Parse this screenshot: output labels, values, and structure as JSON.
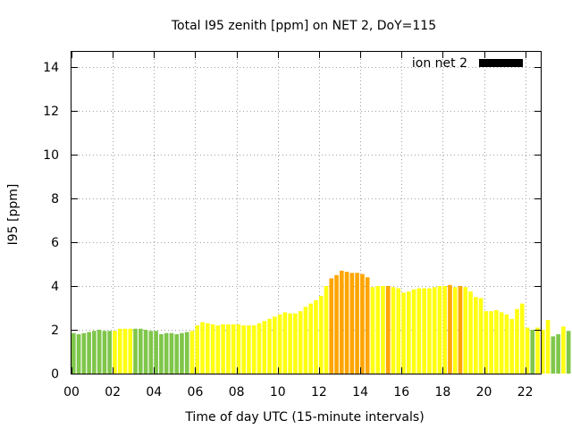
{
  "chart_data": {
    "type": "bar",
    "title": "Total I95 zenith [ppm] on NET 2, DoY=115",
    "xlabel": "Time of day UTC (15-minute intervals)",
    "ylabel": "I95 [ppm]",
    "xlim": [
      0,
      22.75
    ],
    "ylim": [
      0,
      14.7
    ],
    "xticks": [
      "00",
      "02",
      "04",
      "06",
      "08",
      "10",
      "12",
      "14",
      "16",
      "18",
      "20",
      "22"
    ],
    "yticks": [
      "0",
      "2",
      "4",
      "6",
      "8",
      "10",
      "12",
      "14"
    ],
    "grid": true,
    "legend": {
      "label": "ion net 2",
      "color": "#000000",
      "position": "top-right"
    },
    "interval_hours": 0.25,
    "level_colors": {
      "green": "#7fc64a",
      "yellow": "#ffff11",
      "orange": "#ffa500"
    },
    "values": [
      1.85,
      1.8,
      1.85,
      1.9,
      1.95,
      2.0,
      1.95,
      1.95,
      1.95,
      2.05,
      2.05,
      2.05,
      2.05,
      2.05,
      2.0,
      1.95,
      1.95,
      1.8,
      1.85,
      1.85,
      1.8,
      1.85,
      1.9,
      1.95,
      2.2,
      2.35,
      2.3,
      2.25,
      2.2,
      2.25,
      2.25,
      2.25,
      2.25,
      2.2,
      2.2,
      2.2,
      2.3,
      2.4,
      2.5,
      2.6,
      2.7,
      2.8,
      2.75,
      2.75,
      2.85,
      3.05,
      3.2,
      3.35,
      3.55,
      4.0,
      4.35,
      4.5,
      4.7,
      4.65,
      4.6,
      4.6,
      4.55,
      4.4,
      3.95,
      4.0,
      4.0,
      4.0,
      3.95,
      3.9,
      3.7,
      3.75,
      3.85,
      3.9,
      3.9,
      3.9,
      3.95,
      4.0,
      4.0,
      4.05,
      3.95,
      4.0,
      3.95,
      3.75,
      3.5,
      3.45,
      2.85,
      2.85,
      2.9,
      2.8,
      2.7,
      2.5,
      2.95,
      3.2,
      2.1,
      2.0,
      2.1,
      2.0,
      2.45,
      1.7,
      1.8,
      2.15,
      1.95
    ],
    "levels": [
      "green",
      "green",
      "green",
      "green",
      "green",
      "green",
      "green",
      "green",
      "yellow",
      "yellow",
      "yellow",
      "yellow",
      "green",
      "green",
      "green",
      "green",
      "green",
      "green",
      "green",
      "green",
      "green",
      "green",
      "green",
      "yellow",
      "yellow",
      "yellow",
      "yellow",
      "yellow",
      "yellow",
      "yellow",
      "yellow",
      "yellow",
      "yellow",
      "yellow",
      "yellow",
      "yellow",
      "yellow",
      "yellow",
      "yellow",
      "yellow",
      "yellow",
      "yellow",
      "yellow",
      "yellow",
      "yellow",
      "yellow",
      "yellow",
      "yellow",
      "yellow",
      "yellow",
      "orange",
      "orange",
      "orange",
      "orange",
      "orange",
      "orange",
      "orange",
      "orange",
      "yellow",
      "yellow",
      "yellow",
      "orange",
      "yellow",
      "yellow",
      "yellow",
      "yellow",
      "yellow",
      "yellow",
      "yellow",
      "yellow",
      "yellow",
      "yellow",
      "yellow",
      "orange",
      "yellow",
      "orange",
      "yellow",
      "yellow",
      "yellow",
      "yellow",
      "yellow",
      "yellow",
      "yellow",
      "yellow",
      "yellow",
      "yellow",
      "yellow",
      "yellow",
      "yellow",
      "green",
      "yellow",
      "yellow",
      "yellow",
      "green",
      "green",
      "yellow",
      "green"
    ]
  }
}
